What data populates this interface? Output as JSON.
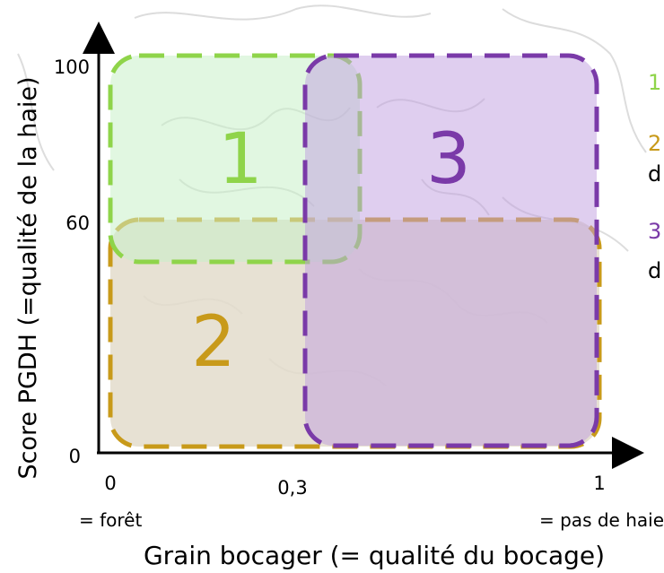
{
  "axes": {
    "y_label": "Score PGDH (=qualité de la haie)",
    "x_label": "Grain bocager (= qualité du bocage)",
    "y_ticks": [
      "100",
      "60",
      "0"
    ],
    "x_ticks": [
      "0",
      "0,3",
      "1"
    ],
    "x_left_note": "= forêt",
    "x_right_note": "= pas de haie"
  },
  "zones": [
    {
      "id": "1",
      "label": "1",
      "fill": "#c8f0c8",
      "stroke": "#8fd44a",
      "text_color": "#8fd44a"
    },
    {
      "id": "2",
      "label": "2",
      "fill": "#e3dccb",
      "stroke": "#c89a1a",
      "text_color": "#c89a1a"
    },
    {
      "id": "3",
      "label": "3",
      "fill": "#d9c4ea",
      "stroke": "#7a3aa8",
      "text_color": "#7a3aa8"
    }
  ],
  "legend": [
    {
      "number": "1",
      "text": "",
      "color": "#8fd44a"
    },
    {
      "number": "2",
      "text": "d",
      "color": "#c89a1a"
    },
    {
      "number": "3",
      "text": "d",
      "color": "#7a3aa8"
    }
  ]
}
